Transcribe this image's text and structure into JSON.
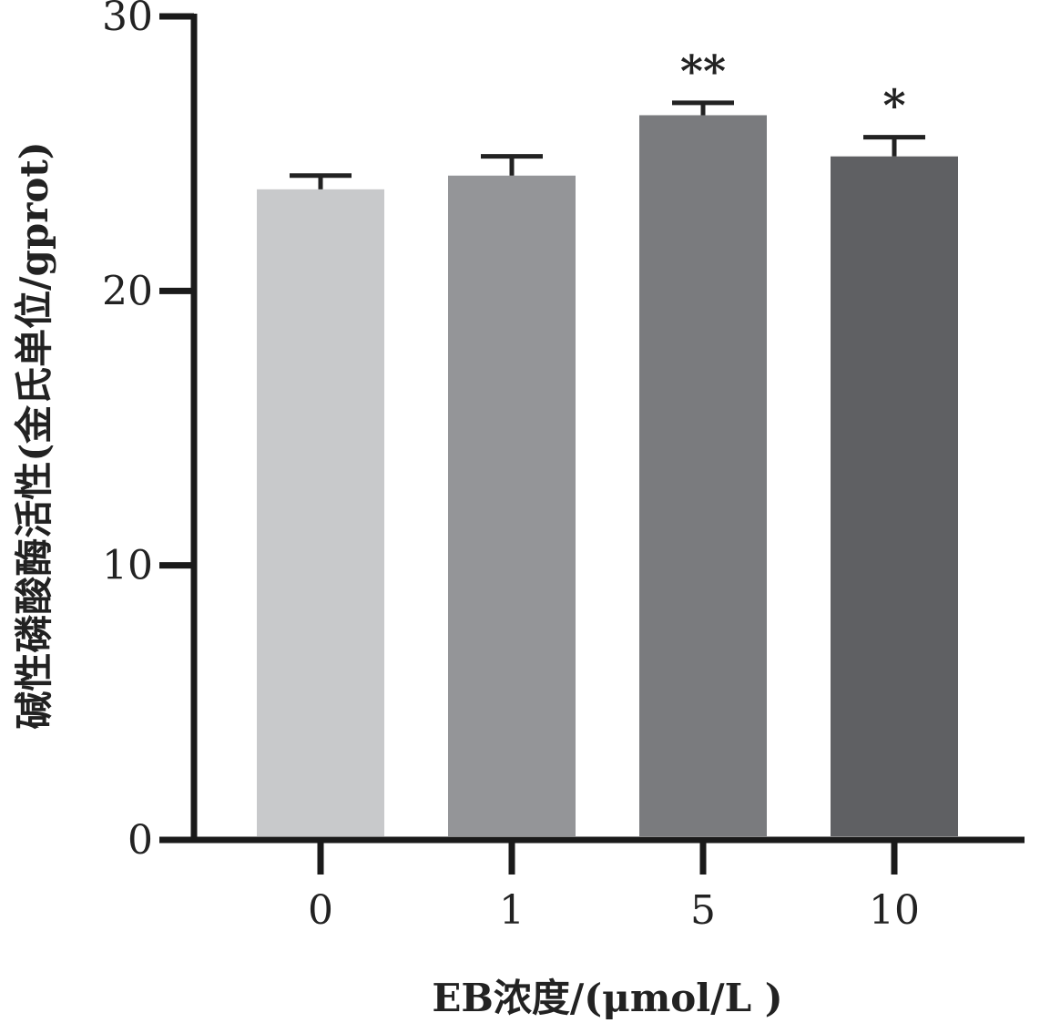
{
  "chart_data": {
    "type": "bar",
    "xlabel": "EB浓度/(μmol/L )",
    "ylabel": "碱性磷酸酶活性(金氏单位/gprot)",
    "categories": [
      "0",
      "1",
      "5",
      "10"
    ],
    "values": [
      23.7,
      24.2,
      26.4,
      24.9
    ],
    "errors": [
      0.5,
      0.7,
      0.45,
      0.7
    ],
    "significance": [
      "",
      "",
      "**",
      "*"
    ],
    "bar_colors": [
      "#c8c9cb",
      "#949598",
      "#7a7b7e",
      "#5f6063"
    ],
    "ylim": [
      0,
      30
    ],
    "yticks": [
      "0",
      "10",
      "20",
      "30"
    ],
    "grid": false,
    "legend": "none"
  }
}
